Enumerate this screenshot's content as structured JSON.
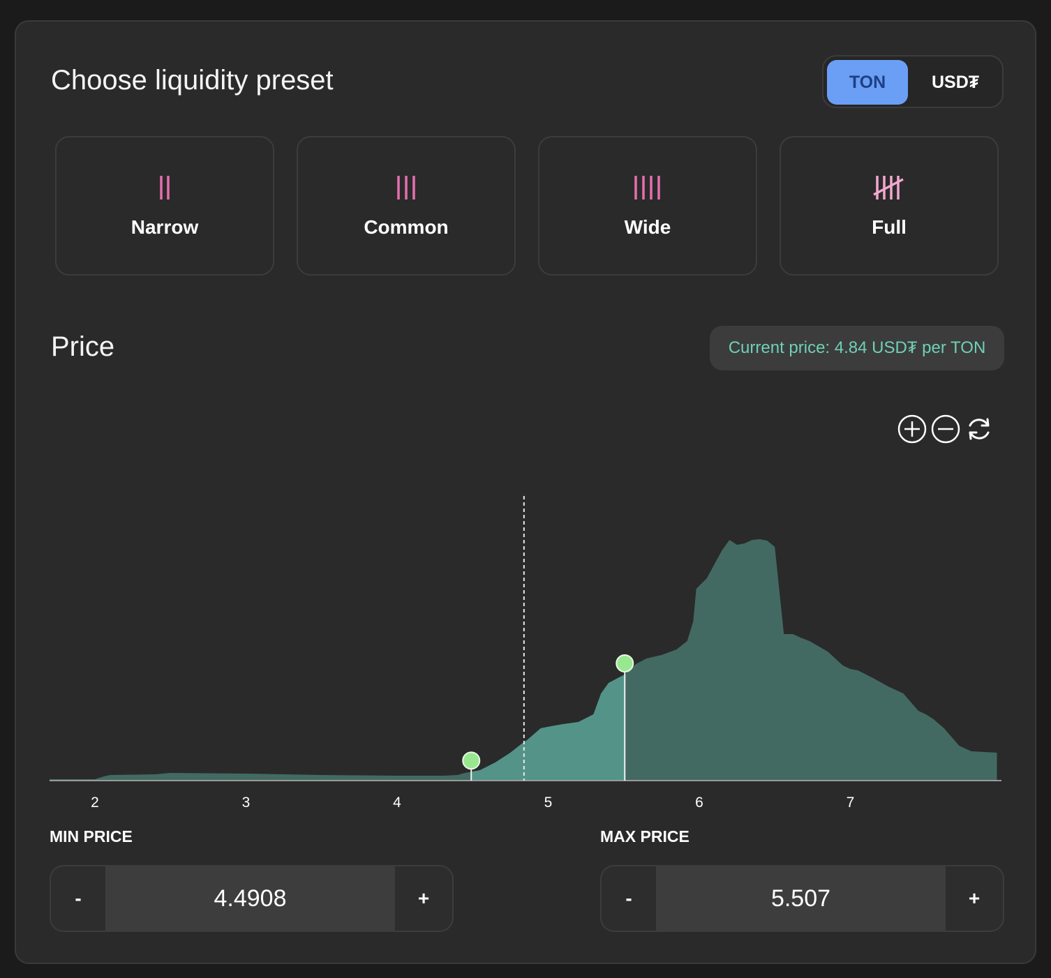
{
  "header": {
    "title": "Choose liquidity preset",
    "token_options": [
      "TON",
      "USD₮"
    ],
    "selected_token": "TON"
  },
  "presets": [
    {
      "label": "Narrow",
      "icon": "two-bars-icon"
    },
    {
      "label": "Common",
      "icon": "three-bars-icon"
    },
    {
      "label": "Wide",
      "icon": "four-bars-icon"
    },
    {
      "label": "Full",
      "icon": "tally-five-icon"
    }
  ],
  "colors": {
    "accent_blue": "#6a9ff5",
    "preset_icon_pink": "#e66fae",
    "current_price_text": "#6fd0b5",
    "area_selected": "#549488",
    "area_unselected": "#436a62",
    "handle": "#98e890"
  },
  "price": {
    "title": "Price",
    "current_price_label": "Current price: 4.84 USD₮ per TON"
  },
  "zoom_controls": [
    "zoom-in-icon",
    "zoom-out-icon",
    "reset-icon"
  ],
  "chart_data": {
    "type": "area",
    "xlim": [
      1.7,
      8.0
    ],
    "x_ticks": [
      "2",
      "3",
      "4",
      "5",
      "6",
      "7"
    ],
    "current_price": 4.84,
    "range": {
      "min": 4.4908,
      "max": 5.507
    },
    "x": [
      1.7,
      2.0,
      2.03,
      2.06,
      2.1,
      2.4,
      2.5,
      3.0,
      3.5,
      4.0,
      4.3,
      4.4,
      4.45,
      4.55,
      4.65,
      4.75,
      4.82,
      4.86,
      4.95,
      5.02,
      5.1,
      5.2,
      5.3,
      5.35,
      5.4,
      5.47,
      5.507,
      5.58,
      5.65,
      5.75,
      5.85,
      5.92,
      5.96,
      5.98,
      6.05,
      6.1,
      6.15,
      6.2,
      6.25,
      6.3,
      6.35,
      6.4,
      6.45,
      6.5,
      6.56,
      6.62,
      6.67,
      6.73,
      6.85,
      6.95,
      7.0,
      7.05,
      7.15,
      7.25,
      7.3,
      7.35,
      7.45,
      7.5,
      7.55,
      7.62,
      7.72,
      7.8,
      7.97
    ],
    "y": [
      2,
      2,
      4,
      6,
      8,
      9,
      11,
      10,
      8,
      7,
      7,
      8,
      11,
      15,
      26,
      40,
      52,
      58,
      75,
      78,
      81,
      84,
      95,
      125,
      140,
      148,
      152,
      167,
      175,
      180,
      188,
      200,
      228,
      275,
      290,
      310,
      330,
      345,
      338,
      340,
      345,
      346,
      344,
      335,
      210,
      210,
      205,
      200,
      185,
      165,
      160,
      158,
      147,
      135,
      130,
      125,
      100,
      95,
      88,
      75,
      50,
      42,
      40
    ]
  },
  "min_price": {
    "label": "MIN PRICE",
    "value": "4.4908",
    "dec": "-",
    "inc": "+"
  },
  "max_price": {
    "label": "MAX PRICE",
    "value": "5.507",
    "dec": "-",
    "inc": "+"
  }
}
